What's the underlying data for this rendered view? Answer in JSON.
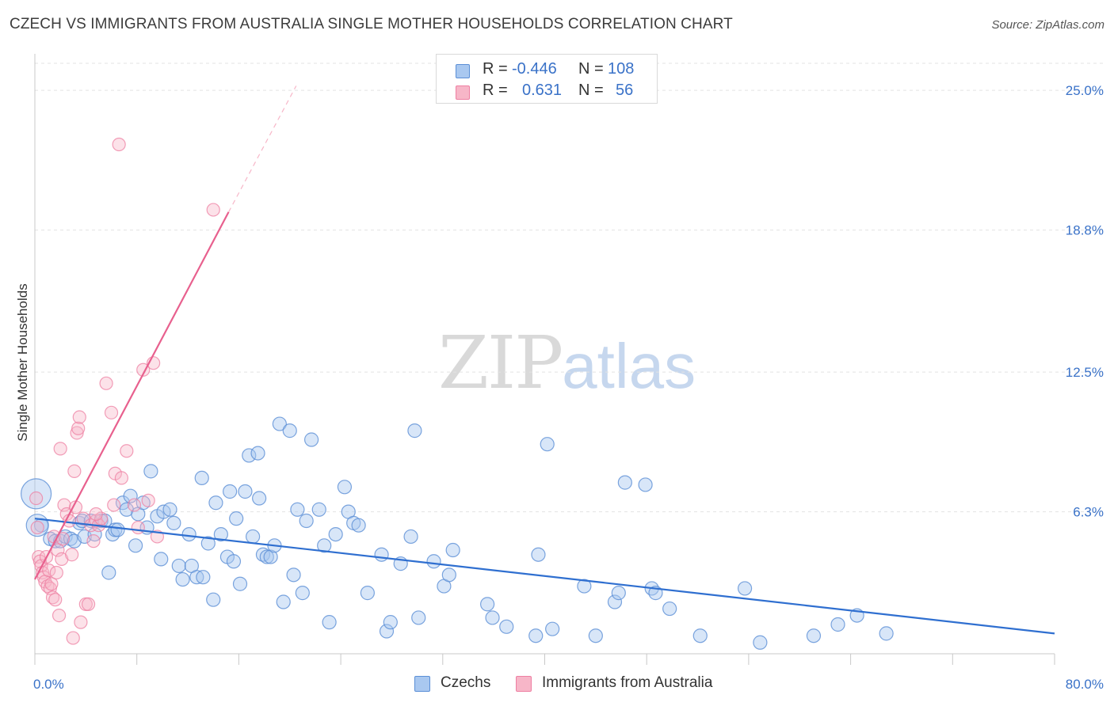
{
  "title": "CZECH VS IMMIGRANTS FROM AUSTRALIA SINGLE MOTHER HOUSEHOLDS CORRELATION CHART",
  "source": "Source: ZipAtlas.com",
  "watermark": {
    "zip": "ZIP",
    "atlas": "atlas"
  },
  "legend_top": {
    "rows": [
      {
        "r_label": "R =",
        "r_value": "-0.446",
        "n_label": "N =",
        "n_value": "108",
        "color": "#a9c8f0"
      },
      {
        "r_label": "R =",
        "r_value": "0.631",
        "n_label": "N =",
        "n_value": "56",
        "color": "#f7b6c8"
      }
    ]
  },
  "legend_bottom": {
    "czechs": "Czechs",
    "immigrants": "Immigrants from Australia"
  },
  "chart_data": {
    "type": "scatter",
    "title": "CZECH VS IMMIGRANTS FROM AUSTRALIA SINGLE MOTHER HOUSEHOLDS CORRELATION CHART",
    "xlabel": "",
    "ylabel": "Single Mother Households",
    "xlim": [
      0,
      80
    ],
    "ylim": [
      0,
      26.2
    ],
    "x_tick_labels": [
      "0.0%",
      "80.0%"
    ],
    "y_ticks": [
      6.3,
      12.5,
      18.8,
      25.0
    ],
    "y_tick_labels": [
      "6.3%",
      "12.5%",
      "18.8%",
      "25.0%"
    ],
    "grid": true,
    "colors": {
      "czechs": "#5b8fd6",
      "czechs_fill": "#a9c8f0",
      "czechs_line": "#2f6fd0",
      "immigrants": "#ee7fa2",
      "immigrants_fill": "#f7b6c8",
      "immigrants_line": "#e8608e",
      "tick_label": "#3a72c8"
    },
    "series": [
      {
        "name": "Czechs",
        "trend": {
          "x": [
            0,
            80
          ],
          "y": [
            6.0,
            0.9
          ]
        },
        "points": [
          [
            0.1,
            7.1
          ],
          [
            0.5,
            5.7
          ],
          [
            1.2,
            5.1
          ],
          [
            1.6,
            5.0
          ],
          [
            2.0,
            5.0
          ],
          [
            2.4,
            5.2
          ],
          [
            2.8,
            5.1
          ],
          [
            3.1,
            5.0
          ],
          [
            3.5,
            5.8
          ],
          [
            3.7,
            5.9
          ],
          [
            3.9,
            5.2
          ],
          [
            4.4,
            5.9
          ],
          [
            4.7,
            5.3
          ],
          [
            5.2,
            5.9
          ],
          [
            5.5,
            5.9
          ],
          [
            5.8,
            3.6
          ],
          [
            6.1,
            5.3
          ],
          [
            6.3,
            5.5
          ],
          [
            6.5,
            5.5
          ],
          [
            6.9,
            6.7
          ],
          [
            7.2,
            6.4
          ],
          [
            7.5,
            7.0
          ],
          [
            7.9,
            4.8
          ],
          [
            8.1,
            6.2
          ],
          [
            8.5,
            6.7
          ],
          [
            8.8,
            5.6
          ],
          [
            9.1,
            8.1
          ],
          [
            9.6,
            6.1
          ],
          [
            9.9,
            4.2
          ],
          [
            10.1,
            6.3
          ],
          [
            10.6,
            6.4
          ],
          [
            10.9,
            5.8
          ],
          [
            11.3,
            3.9
          ],
          [
            11.6,
            3.3
          ],
          [
            12.1,
            5.3
          ],
          [
            12.3,
            3.9
          ],
          [
            12.7,
            3.4
          ],
          [
            13.2,
            3.4
          ],
          [
            13.1,
            7.8
          ],
          [
            13.6,
            4.9
          ],
          [
            14.0,
            2.4
          ],
          [
            14.2,
            6.7
          ],
          [
            14.6,
            5.3
          ],
          [
            15.1,
            4.3
          ],
          [
            15.3,
            7.2
          ],
          [
            15.6,
            4.1
          ],
          [
            15.8,
            6.0
          ],
          [
            16.1,
            3.1
          ],
          [
            16.5,
            7.2
          ],
          [
            16.8,
            8.8
          ],
          [
            17.1,
            5.2
          ],
          [
            17.5,
            8.9
          ],
          [
            17.6,
            6.9
          ],
          [
            17.9,
            4.4
          ],
          [
            18.2,
            4.3
          ],
          [
            18.5,
            4.3
          ],
          [
            18.8,
            4.8
          ],
          [
            19.2,
            10.2
          ],
          [
            19.5,
            2.3
          ],
          [
            20.0,
            9.9
          ],
          [
            20.3,
            3.5
          ],
          [
            20.6,
            6.4
          ],
          [
            21.0,
            2.7
          ],
          [
            21.3,
            5.9
          ],
          [
            21.7,
            9.5
          ],
          [
            22.3,
            6.4
          ],
          [
            22.7,
            4.8
          ],
          [
            23.1,
            1.4
          ],
          [
            23.6,
            5.3
          ],
          [
            24.3,
            7.4
          ],
          [
            24.6,
            6.3
          ],
          [
            25.0,
            5.8
          ],
          [
            25.4,
            5.7
          ],
          [
            26.1,
            2.7
          ],
          [
            27.2,
            4.4
          ],
          [
            27.6,
            1.0
          ],
          [
            27.9,
            1.4
          ],
          [
            28.7,
            4.0
          ],
          [
            29.5,
            5.2
          ],
          [
            29.8,
            9.9
          ],
          [
            30.1,
            1.6
          ],
          [
            31.3,
            4.1
          ],
          [
            32.1,
            3.0
          ],
          [
            32.5,
            3.5
          ],
          [
            32.8,
            4.6
          ],
          [
            35.5,
            2.2
          ],
          [
            35.9,
            1.6
          ],
          [
            37.0,
            1.2
          ],
          [
            39.3,
            0.8
          ],
          [
            39.5,
            4.4
          ],
          [
            40.2,
            9.3
          ],
          [
            40.6,
            1.1
          ],
          [
            43.1,
            3.0
          ],
          [
            44.0,
            0.8
          ],
          [
            45.5,
            2.3
          ],
          [
            45.8,
            2.7
          ],
          [
            46.3,
            7.6
          ],
          [
            47.9,
            7.5
          ],
          [
            48.4,
            2.9
          ],
          [
            48.7,
            2.7
          ],
          [
            49.8,
            2.0
          ],
          [
            52.2,
            0.8
          ],
          [
            55.7,
            2.9
          ],
          [
            56.9,
            0.5
          ],
          [
            61.1,
            0.8
          ],
          [
            63.0,
            1.3
          ],
          [
            64.5,
            1.7
          ],
          [
            66.8,
            0.9
          ]
        ]
      },
      {
        "name": "Immigrants from Australia",
        "trend": {
          "x": [
            0,
            15.2
          ],
          "y": [
            3.3,
            19.6
          ]
        },
        "trend_extension": {
          "x": [
            15.2,
            20.5
          ],
          "y": [
            19.6,
            25.2
          ]
        },
        "points": [
          [
            0.1,
            6.9
          ],
          [
            0.2,
            5.6
          ],
          [
            0.3,
            4.3
          ],
          [
            0.4,
            4.1
          ],
          [
            0.5,
            3.9
          ],
          [
            0.6,
            3.6
          ],
          [
            0.7,
            3.4
          ],
          [
            0.8,
            3.2
          ],
          [
            0.9,
            4.3
          ],
          [
            1.0,
            3.0
          ],
          [
            1.1,
            3.7
          ],
          [
            1.2,
            2.9
          ],
          [
            1.3,
            3.1
          ],
          [
            1.4,
            2.5
          ],
          [
            1.5,
            5.2
          ],
          [
            1.6,
            2.4
          ],
          [
            1.7,
            3.6
          ],
          [
            1.8,
            4.6
          ],
          [
            1.9,
            1.7
          ],
          [
            2.0,
            9.1
          ],
          [
            2.1,
            4.2
          ],
          [
            2.3,
            6.6
          ],
          [
            2.5,
            6.2
          ],
          [
            2.7,
            5.9
          ],
          [
            2.9,
            4.4
          ],
          [
            3.0,
            0.7
          ],
          [
            3.1,
            8.1
          ],
          [
            3.3,
            9.8
          ],
          [
            3.4,
            10.0
          ],
          [
            3.5,
            10.5
          ],
          [
            3.6,
            1.4
          ],
          [
            3.8,
            6.0
          ],
          [
            4.0,
            2.2
          ],
          [
            4.2,
            2.2
          ],
          [
            4.4,
            5.7
          ],
          [
            4.6,
            5.0
          ],
          [
            4.8,
            5.9
          ],
          [
            5.0,
            5.7
          ],
          [
            5.2,
            6.0
          ],
          [
            5.6,
            12.0
          ],
          [
            6.0,
            10.7
          ],
          [
            6.3,
            8.0
          ],
          [
            6.6,
            22.6
          ],
          [
            6.8,
            7.8
          ],
          [
            7.2,
            9.0
          ],
          [
            7.8,
            6.6
          ],
          [
            8.1,
            5.6
          ],
          [
            8.5,
            12.6
          ],
          [
            8.9,
            6.8
          ],
          [
            9.3,
            12.9
          ],
          [
            9.6,
            5.2
          ],
          [
            14.0,
            19.7
          ],
          [
            3.2,
            6.5
          ],
          [
            2.2,
            5.1
          ],
          [
            6.2,
            6.6
          ],
          [
            4.8,
            6.2
          ]
        ]
      }
    ]
  }
}
